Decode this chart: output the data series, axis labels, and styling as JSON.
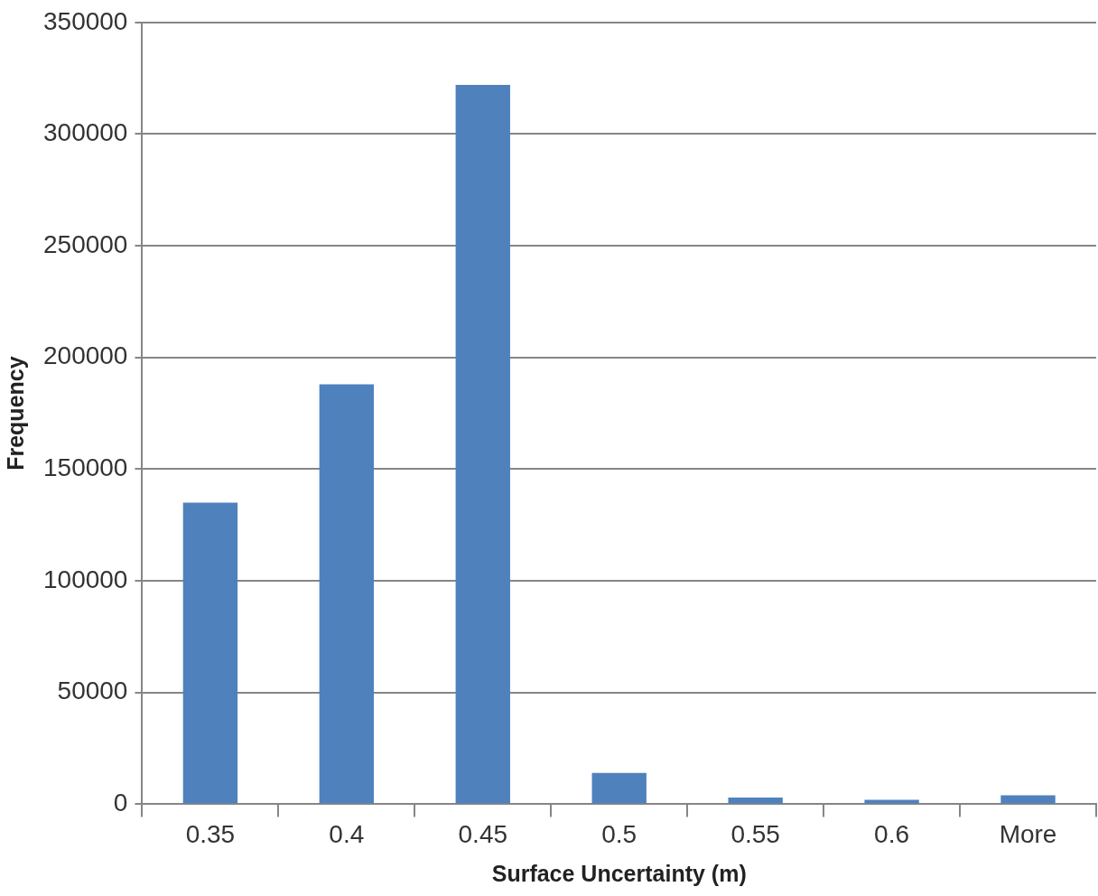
{
  "chart_data": {
    "type": "bar",
    "xlabel": "Surface Uncertainty (m)",
    "ylabel": "Frequency",
    "categories": [
      "0.35",
      "0.4",
      "0.45",
      "0.5",
      "0.55",
      "0.6",
      "More"
    ],
    "values": [
      135000,
      188000,
      322000,
      14000,
      3000,
      2000,
      4000
    ],
    "color": "#4f81bd",
    "ylim": [
      0,
      350000
    ],
    "yticks": [
      0,
      50000,
      100000,
      150000,
      200000,
      250000,
      300000,
      350000
    ],
    "grid": "y"
  }
}
